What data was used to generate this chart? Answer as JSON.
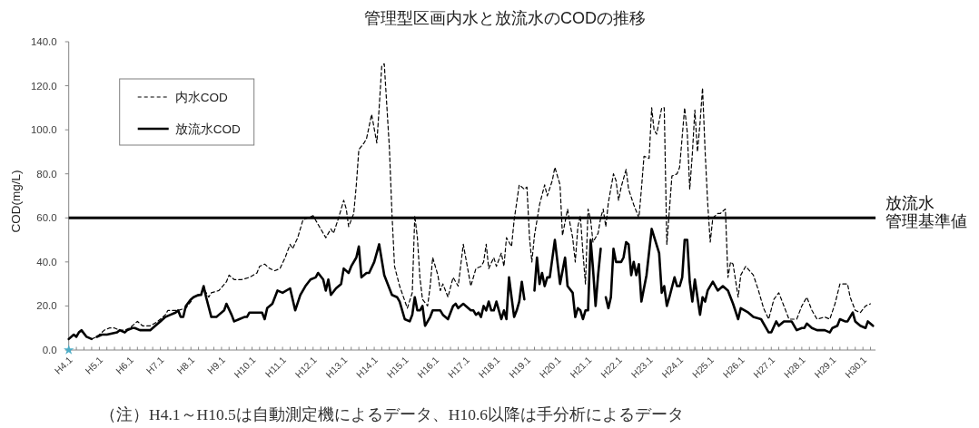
{
  "chart_data": {
    "type": "line",
    "title": "管理型区画内水と放流水のCODの推移",
    "ylabel": "COD(mg/L)",
    "annotations": [
      "（注）H4.1～H10.5は自動測定機によるデータ、H10.6以降は手分析によるデータ"
    ],
    "xlim": [
      "1992-01",
      "2018-06"
    ],
    "xticks": [
      {
        "value": "1992-01",
        "label": "H4.1"
      },
      {
        "value": "1992-04",
        "label": null
      },
      {
        "value": "1992-07",
        "label": null
      },
      {
        "value": "1992-10",
        "label": null
      },
      {
        "value": "1993-01",
        "label": "H5.1"
      },
      {
        "value": "1993-04",
        "label": null
      },
      {
        "value": "1993-07",
        "label": null
      },
      {
        "value": "1993-10",
        "label": null
      },
      {
        "value": "1994-01",
        "label": "H6.1"
      },
      {
        "value": "1994-04",
        "label": null
      },
      {
        "value": "1994-07",
        "label": null
      },
      {
        "value": "1994-10",
        "label": null
      },
      {
        "value": "1995-01",
        "label": "H7.1"
      },
      {
        "value": "1995-04",
        "label": null
      },
      {
        "value": "1995-07",
        "label": null
      },
      {
        "value": "1995-10",
        "label": null
      },
      {
        "value": "1996-01",
        "label": "H8.1"
      },
      {
        "value": "1996-04",
        "label": null
      },
      {
        "value": "1996-07",
        "label": null
      },
      {
        "value": "1996-10",
        "label": null
      },
      {
        "value": "1997-01",
        "label": "H9.1"
      },
      {
        "value": "1997-04",
        "label": null
      },
      {
        "value": "1997-07",
        "label": null
      },
      {
        "value": "1997-10",
        "label": null
      },
      {
        "value": "1998-01",
        "label": "H10.1"
      },
      {
        "value": "1998-04",
        "label": null
      },
      {
        "value": "1998-07",
        "label": null
      },
      {
        "value": "1998-10",
        "label": null
      },
      {
        "value": "1999-01",
        "label": "H11.1"
      },
      {
        "value": "1999-04",
        "label": null
      },
      {
        "value": "1999-07",
        "label": null
      },
      {
        "value": "1999-10",
        "label": null
      },
      {
        "value": "2000-01",
        "label": "H12.1"
      },
      {
        "value": "2000-04",
        "label": null
      },
      {
        "value": "2000-07",
        "label": null
      },
      {
        "value": "2000-10",
        "label": null
      },
      {
        "value": "2001-01",
        "label": "H13.1"
      },
      {
        "value": "2001-04",
        "label": null
      },
      {
        "value": "2001-07",
        "label": null
      },
      {
        "value": "2001-10",
        "label": null
      },
      {
        "value": "2002-01",
        "label": "H14.1"
      },
      {
        "value": "2002-04",
        "label": null
      },
      {
        "value": "2002-07",
        "label": null
      },
      {
        "value": "2002-10",
        "label": null
      },
      {
        "value": "2003-01",
        "label": "H15.1"
      },
      {
        "value": "2003-04",
        "label": null
      },
      {
        "value": "2003-07",
        "label": null
      },
      {
        "value": "2003-10",
        "label": null
      },
      {
        "value": "2004-01",
        "label": "H16.1"
      },
      {
        "value": "2004-04",
        "label": null
      },
      {
        "value": "2004-07",
        "label": null
      },
      {
        "value": "2004-10",
        "label": null
      },
      {
        "value": "2005-01",
        "label": "H17.1"
      },
      {
        "value": "2005-04",
        "label": null
      },
      {
        "value": "2005-07",
        "label": null
      },
      {
        "value": "2005-10",
        "label": null
      },
      {
        "value": "2006-01",
        "label": "H18.1"
      },
      {
        "value": "2006-04",
        "label": null
      },
      {
        "value": "2006-07",
        "label": null
      },
      {
        "value": "2006-10",
        "label": null
      },
      {
        "value": "2007-01",
        "label": "H19.1"
      },
      {
        "value": "2007-04",
        "label": null
      },
      {
        "value": "2007-07",
        "label": null
      },
      {
        "value": "2007-10",
        "label": null
      },
      {
        "value": "2008-01",
        "label": "H20.1"
      },
      {
        "value": "2008-04",
        "label": null
      },
      {
        "value": "2008-07",
        "label": null
      },
      {
        "value": "2008-10",
        "label": null
      },
      {
        "value": "2009-01",
        "label": "H21.1"
      },
      {
        "value": "2009-04",
        "label": null
      },
      {
        "value": "2009-07",
        "label": null
      },
      {
        "value": "2009-10",
        "label": null
      },
      {
        "value": "2010-01",
        "label": "H22.1"
      },
      {
        "value": "2010-04",
        "label": null
      },
      {
        "value": "2010-07",
        "label": null
      },
      {
        "value": "2010-10",
        "label": null
      },
      {
        "value": "2011-01",
        "label": "H23.1"
      },
      {
        "value": "2011-04",
        "label": null
      },
      {
        "value": "2011-07",
        "label": null
      },
      {
        "value": "2011-10",
        "label": null
      },
      {
        "value": "2012-01",
        "label": "H24.1"
      },
      {
        "value": "2012-04",
        "label": null
      },
      {
        "value": "2012-07",
        "label": null
      },
      {
        "value": "2012-10",
        "label": null
      },
      {
        "value": "2013-01",
        "label": "H25.1"
      },
      {
        "value": "2013-04",
        "label": null
      },
      {
        "value": "2013-07",
        "label": null
      },
      {
        "value": "2013-10",
        "label": null
      },
      {
        "value": "2014-01",
        "label": "H26.1"
      },
      {
        "value": "2014-04",
        "label": null
      },
      {
        "value": "2014-07",
        "label": null
      },
      {
        "value": "2014-10",
        "label": null
      },
      {
        "value": "2015-01",
        "label": "H27.1"
      },
      {
        "value": "2015-04",
        "label": null
      },
      {
        "value": "2015-07",
        "label": null
      },
      {
        "value": "2015-10",
        "label": null
      },
      {
        "value": "2016-01",
        "label": "H28.1"
      },
      {
        "value": "2016-04",
        "label": null
      },
      {
        "value": "2016-07",
        "label": null
      },
      {
        "value": "2016-10",
        "label": null
      },
      {
        "value": "2017-01",
        "label": "H29.1"
      },
      {
        "value": "2017-04",
        "label": null
      },
      {
        "value": "2017-07",
        "label": null
      },
      {
        "value": "2017-10",
        "label": null
      },
      {
        "value": "2018-01",
        "label": "H30.1"
      },
      {
        "value": "2018-04",
        "label": null
      }
    ],
    "ylim": [
      0,
      140
    ],
    "yticks": [
      {
        "value": 0,
        "label": "0.0"
      },
      {
        "value": 20,
        "label": "20.0"
      },
      {
        "value": 40,
        "label": "40.0"
      },
      {
        "value": 60,
        "label": "60.0"
      },
      {
        "value": 80,
        "label": "80.0"
      },
      {
        "value": 100,
        "label": "100.0"
      },
      {
        "value": 120,
        "label": "120.0"
      },
      {
        "value": 140,
        "label": "140.0"
      }
    ],
    "legend": "top left",
    "ref_lines": [
      {
        "axis": "y",
        "value": 60,
        "label": "放流水管理基準値",
        "color": "#000000"
      }
    ],
    "series": [
      {
        "name": "内水COD",
        "color": "#000000",
        "line_style": "dashed",
        "x": [
          "1992-10",
          "1992-12",
          "1993-02",
          "1993-03",
          "1993-05",
          "1993-07",
          "1993-09",
          "1993-11",
          "1994-01",
          "1994-04",
          "1994-06",
          "1994-09",
          "1994-12",
          "1995-03",
          "1995-04",
          "1995-06",
          "1995-08",
          "1995-11",
          "1996-01",
          "1996-02",
          "1996-05",
          "1996-06",
          "1996-08",
          "1996-09",
          "1996-12",
          "1997-03",
          "1997-04",
          "1997-06",
          "1997-09",
          "1997-12",
          "1998-03",
          "1998-04",
          "1998-06",
          "1998-08",
          "1998-10",
          "1998-12",
          "1999-02",
          "1999-04",
          "1999-05",
          "1999-07",
          "1999-09",
          "1999-11",
          "2000-01",
          "2000-03",
          "2000-06",
          "2000-08",
          "2000-09",
          "2000-11",
          "2001-01",
          "2001-02",
          "2001-03",
          "2001-05",
          "2001-06",
          "2001-07",
          "2001-09",
          "2001-10",
          "2001-12",
          "2002-02",
          "2002-03",
          "2002-04",
          "2002-05",
          "2002-07",
          "2002-08",
          "2002-09",
          "2002-11",
          "2003-02",
          "2003-04",
          "2003-05",
          "2003-06",
          "2003-07",
          "2003-08",
          "2003-10",
          "2003-11",
          "2003-12",
          "2004-02",
          "2004-03",
          "2004-04",
          "2004-06",
          "2004-08",
          "2004-10",
          "2004-12",
          "2005-02",
          "2005-03",
          "2005-05",
          "2005-07",
          "2005-08",
          "2005-09",
          "2005-10",
          "2005-12",
          "2006-01",
          "2006-03",
          "2006-04",
          "2006-05",
          "2006-07",
          "2006-08",
          "2006-10",
          "2006-12",
          "2007-01",
          "2007-02",
          "2007-03",
          "2007-04",
          "2007-06",
          "2007-08",
          "2007-09",
          "2007-11",
          "2007-12",
          "2008-02",
          "2008-03",
          "2008-05",
          "2008-06",
          "2008-07",
          "2008-08",
          "2008-09",
          "2008-10",
          "2008-11",
          "2008-12",
          "2009-01",
          "2009-02",
          "2009-03",
          "2009-05",
          "2009-06",
          "2009-07",
          "2009-08",
          "2009-09",
          "2009-11",
          "2009-12",
          "2010-01",
          "2010-02",
          "2010-04",
          "2010-05",
          "2010-07",
          "2010-09",
          "2010-10",
          "2010-11",
          "2011-01",
          "2011-02",
          "2011-03",
          "2011-04",
          "2011-06",
          "2011-07",
          "2011-08",
          "2011-10",
          "2011-12",
          "2012-01",
          "2012-03",
          "2012-04",
          "2012-05",
          "2012-06",
          "2012-07",
          "2012-08",
          "2012-09",
          "2012-10",
          "2012-11",
          "2012-12",
          "2013-01",
          "2013-02",
          "2013-04",
          "2013-05",
          "2013-07",
          "2013-08",
          "2013-09",
          "2013-10",
          "2013-12",
          "2014-01",
          "2014-03",
          "2014-06",
          "2014-08",
          "2014-10",
          "2014-12",
          "2015-02",
          "2015-04",
          "2015-06",
          "2015-08",
          "2015-11",
          "2016-01",
          "2016-03",
          "2016-05",
          "2016-07",
          "2016-10",
          "2016-12",
          "2017-02",
          "2017-04",
          "2017-07",
          "2017-08",
          "2017-10",
          "2017-12",
          "2018-02",
          "2018-04"
        ],
        "values": [
          5,
          6,
          8,
          9,
          10,
          10,
          9,
          9,
          10,
          13,
          11,
          11,
          13,
          16,
          18,
          18,
          18,
          19,
          22,
          24,
          25,
          28,
          24,
          26,
          27,
          31,
          34,
          32,
          32,
          33,
          35,
          38,
          39,
          37,
          36,
          37,
          42,
          48,
          46,
          51,
          59,
          60,
          61,
          57,
          51,
          55,
          53,
          60,
          68,
          64,
          56,
          62,
          75,
          91,
          94,
          96,
          107,
          94,
          110,
          129,
          130,
          92,
          62,
          38,
          29,
          19,
          26,
          61,
          51,
          33,
          23,
          20,
          29,
          42,
          34,
          27,
          30,
          24,
          33,
          29,
          48,
          35,
          29,
          37,
          38,
          40,
          48,
          37,
          42,
          38,
          44,
          38,
          51,
          47,
          59,
          75,
          73,
          74,
          51,
          40,
          52,
          66,
          75,
          70,
          77,
          83,
          75,
          52,
          64,
          57,
          51,
          40,
          56,
          61,
          44,
          30,
          64,
          59,
          49,
          53,
          60,
          64,
          56,
          67,
          80,
          77,
          68,
          74,
          82,
          73,
          66,
          60,
          73,
          88,
          87,
          110,
          100,
          98,
          110,
          110,
          48,
          79,
          80,
          83,
          110,
          99,
          73,
          89,
          109,
          90,
          103,
          119,
          90,
          67,
          49,
          60,
          62,
          62,
          64,
          33,
          40,
          39,
          24,
          34,
          38,
          34,
          27,
          19,
          14,
          23,
          26,
          20,
          14,
          14,
          20,
          24,
          18,
          14,
          15,
          14,
          21,
          30,
          30,
          24,
          18,
          17,
          20,
          21
        ]
      },
      {
        "name": "放流水COD",
        "color": "#000000",
        "line_style": "solid",
        "x": [
          "1992-01",
          "1992-03",
          "1992-04",
          "1992-05",
          "1992-06",
          "1992-08",
          "1992-10",
          "1992-11",
          "1992-12",
          "1993-02",
          "1993-04",
          "1993-08",
          "1993-09",
          "1993-11",
          "1993-12",
          "1994-02",
          "1994-03",
          "1994-05",
          "1994-06",
          "1994-09",
          "1994-11",
          "1995-01",
          "1995-03",
          "1995-05",
          "1995-07",
          "1995-08",
          "1995-09",
          "1995-10",
          "1995-11",
          "1996-01",
          "1996-02",
          "1996-04",
          "1996-05",
          "1996-06",
          "1996-07",
          "1996-09",
          "1996-11",
          "1996-12",
          "1997-02",
          "1997-03",
          "1997-05",
          "1997-06",
          "1997-08",
          "1997-10",
          "1997-11",
          "1997-12",
          "1998-03",
          "1998-05",
          "1998-06",
          "1998-07",
          "1998-09",
          "1998-11",
          "1999-01",
          "1999-04",
          "1999-06",
          "1999-08",
          "1999-10",
          "1999-12",
          "2000-02",
          "2000-03",
          "2000-05",
          "2000-06",
          "2000-07",
          "2000-08",
          "2000-10",
          "2000-12",
          "2001-01",
          "2001-03",
          "2001-04",
          "2001-06",
          "2001-07",
          "2001-08",
          "2001-10",
          "2001-11",
          "2002-01",
          "2002-03",
          "2002-05",
          "2002-08",
          "2002-10",
          "2002-11",
          "2003-01",
          "2003-03",
          "2003-04",
          "2003-05",
          "2003-06",
          "2003-07",
          "2003-08",
          "2003-09",
          "2003-11",
          "2003-12",
          "2004-03",
          "2004-04",
          "2004-06",
          "2004-08",
          "2004-09",
          "2004-10",
          "2004-12",
          "2005-01",
          "2005-03",
          "2005-04",
          "2005-05",
          "2005-06",
          "2005-07",
          "2005-08",
          "2005-09",
          "2005-10",
          "2005-11",
          "2005-12",
          "2006-01",
          "2006-03",
          "2006-04",
          "2006-05",
          "2006-06",
          "2006-07",
          "2006-08",
          "2006-09",
          "2006-10",
          "2006-11",
          "2006-12",
          "2007-02",
          "2007-04",
          "2007-05",
          "2007-06",
          "2007-07",
          "2007-08",
          "2007-09",
          "2007-10",
          "2007-12",
          "2008-02",
          "2008-04",
          "2008-05",
          "2008-07",
          "2008-08",
          "2008-09",
          "2008-10",
          "2008-11",
          "2008-12",
          "2009-01",
          "2009-02",
          "2009-03",
          "2009-04",
          "2009-05",
          "2009-06",
          "2009-07",
          "2009-08",
          "2009-09",
          "2009-10",
          "2009-11",
          "2009-12",
          "2010-02",
          "2010-03",
          "2010-04",
          "2010-05",
          "2010-06",
          "2010-07",
          "2010-08",
          "2010-09",
          "2010-10",
          "2010-12",
          "2011-02",
          "2011-05",
          "2011-06",
          "2011-07",
          "2011-08",
          "2011-09",
          "2011-11",
          "2011-12",
          "2012-01",
          "2012-02",
          "2012-03",
          "2012-04",
          "2012-05",
          "2012-06",
          "2012-07",
          "2012-08",
          "2012-09",
          "2012-10",
          "2012-11",
          "2012-12",
          "2013-02",
          "2013-04",
          "2013-06",
          "2013-08",
          "2013-10",
          "2013-12",
          "2014-01",
          "2014-04",
          "2014-06",
          "2014-09",
          "2014-12",
          "2015-01",
          "2015-03",
          "2015-04",
          "2015-06",
          "2015-08",
          "2015-09",
          "2015-11",
          "2016-01",
          "2016-02",
          "2016-03",
          "2016-05",
          "2016-07",
          "2016-10",
          "2016-12",
          "2017-01",
          "2017-03",
          "2017-04",
          "2017-06",
          "2017-07",
          "2017-09",
          "2017-10",
          "2017-12",
          "2018-02",
          "2018-03",
          "2018-05"
        ],
        "values": [
          5,
          7,
          6,
          8,
          9,
          6,
          5,
          null,
          6,
          7,
          7,
          8,
          9,
          8,
          9,
          10,
          10,
          9,
          9,
          9,
          11,
          13,
          15,
          16,
          17,
          18,
          15,
          15,
          20,
          23,
          24,
          25,
          25,
          29,
          24,
          15,
          15,
          16,
          18,
          21,
          16,
          13,
          14,
          15,
          15,
          17,
          17,
          17,
          14,
          19,
          21,
          27,
          26,
          28,
          18,
          25,
          29,
          32,
          33,
          35,
          32,
          27,
          32,
          25,
          28,
          30,
          37,
          35,
          38,
          42,
          47,
          33,
          35,
          35,
          40,
          48,
          34,
          25,
          24,
          22,
          14,
          13,
          16,
          24,
          18,
          18,
          20,
          11,
          15,
          18,
          18,
          16,
          14,
          20,
          21,
          19,
          21,
          20,
          18,
          18,
          16,
          17,
          15,
          20,
          18,
          22,
          18,
          18,
          22,
          14,
          18,
          14,
          33,
          24,
          15,
          18,
          22,
          31,
          23,
          null,
          27,
          42,
          30,
          35,
          29,
          33,
          33,
          50,
          30,
          42,
          29,
          26,
          15,
          19,
          18,
          14,
          18,
          18,
          50,
          37,
          20,
          34,
          46,
          null,
          24,
          19,
          24,
          46,
          40,
          40,
          42,
          49,
          48,
          34,
          40,
          34,
          39,
          22,
          34,
          55,
          44,
          26,
          29,
          20,
          24,
          33,
          29,
          29,
          33,
          50,
          50,
          31,
          22,
          32,
          24,
          16,
          24,
          22,
          27,
          31,
          27,
          29,
          27,
          21,
          14,
          19,
          17,
          15,
          14,
          8,
          8,
          13,
          11,
          13,
          13,
          13,
          9,
          10,
          10,
          12,
          10,
          9,
          9,
          8,
          10,
          11,
          14,
          13,
          13,
          17,
          13,
          11,
          10,
          13,
          11
        ]
      },
      {
        "type": "scatter",
        "color": "#4bacc6",
        "marker": "star",
        "x": [
          "1992-01"
        ],
        "values": [
          0
        ]
      }
    ]
  }
}
